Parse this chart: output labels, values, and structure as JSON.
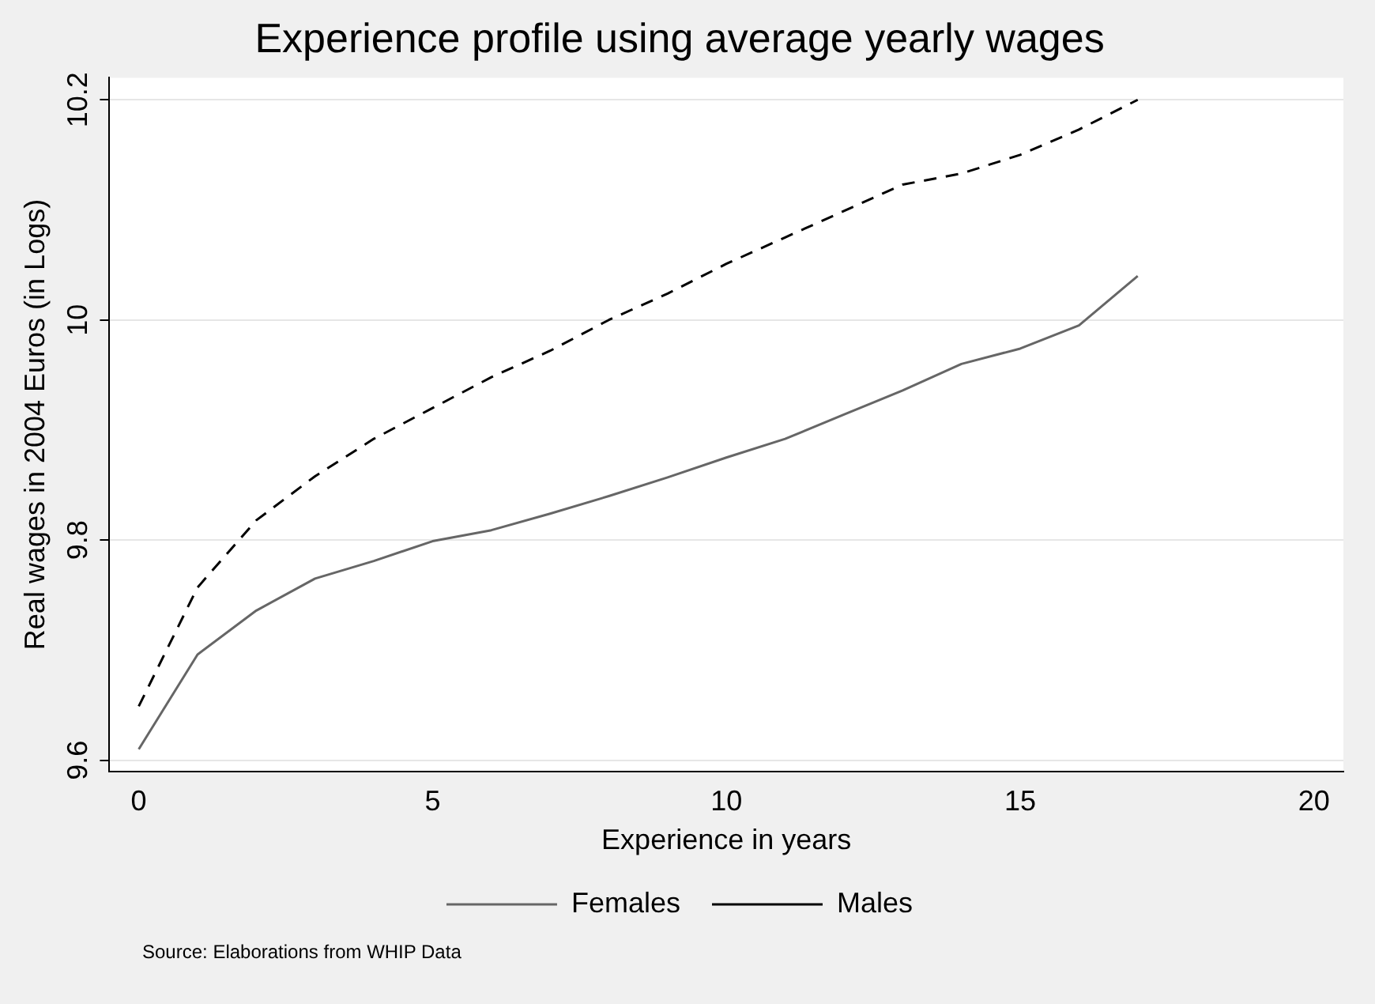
{
  "chart_data": {
    "type": "line",
    "title": "Experience profile using average yearly wages",
    "xlabel": "Experience in years",
    "ylabel": "Real wages in 2004 Euros (in Logs)",
    "annotations": [
      "Source: Elaborations from WHIP Data"
    ],
    "x": [
      0,
      1,
      2,
      3,
      4,
      5,
      6,
      7,
      8,
      9,
      10,
      11,
      12,
      13,
      14,
      15,
      16,
      17
    ],
    "series": [
      {
        "name": "Females",
        "color": "#666666",
        "line_style": "solid",
        "values": [
          9.61,
          9.696,
          9.736,
          9.765,
          9.781,
          9.799,
          9.809,
          9.824,
          9.84,
          9.857,
          9.875,
          9.892,
          9.914,
          9.936,
          9.96,
          9.974,
          9.995,
          10.04
        ]
      },
      {
        "name": "Males",
        "color": "#000000",
        "line_style": "dashed",
        "values": [
          9.649,
          9.757,
          9.818,
          9.858,
          9.892,
          9.92,
          9.948,
          9.972,
          10.0,
          10.024,
          10.051,
          10.075,
          10.099,
          10.123,
          10.133,
          10.15,
          10.173,
          10.2
        ]
      }
    ],
    "xlim": [
      -0.5,
      20.5
    ],
    "xticks": [
      0,
      5,
      10,
      15,
      20
    ],
    "ylim": [
      9.59,
      10.22
    ],
    "yticks": [
      9.6,
      9.8,
      10,
      10.2
    ],
    "grid": "y",
    "legend": "bottom",
    "marker": "none"
  }
}
